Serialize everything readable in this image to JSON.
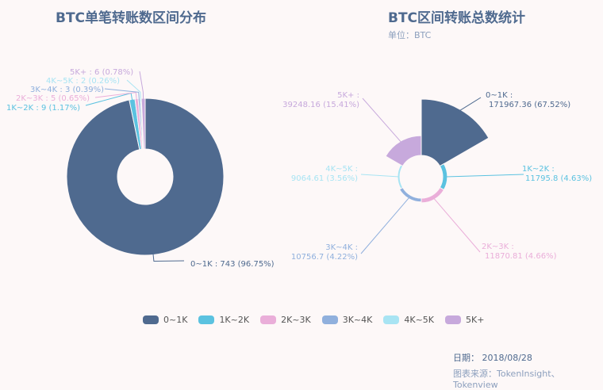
{
  "colors": [
    "#4f6a8f",
    "#5bc2e0",
    "#eaaed9",
    "#90b0dd",
    "#a8e4f3",
    "#c7a9dc"
  ],
  "legend": [
    "0~1K",
    "1K~2K",
    "2K~3K",
    "3K~4K",
    "4K~5K",
    "5K+"
  ],
  "footer": {
    "date": "日期： 2018/08/28",
    "source": "图表来源：TokenInsight、Tokenview"
  },
  "chart_data": [
    {
      "type": "pie",
      "title": "BTC单笔转账数区间分布",
      "categories": [
        "0~1K",
        "1K~2K",
        "2K~3K",
        "3K~4K",
        "4K~5K",
        "5K+"
      ],
      "values": [
        743,
        9,
        5,
        3,
        2,
        6
      ],
      "percent_labels": [
        "96.75%",
        "1.17%",
        "0.65%",
        "0.39%",
        "0.26%",
        "0.78%"
      ],
      "labels": [
        "0~1K : 743 (96.75%)",
        "1K~2K : 9 (1.17%)",
        "2K~3K : 5 (0.65%)",
        "3K~4K : 3 (0.39%)",
        "4K~5K : 2 (0.26%)",
        "5K+ : 6 (0.78%)"
      ]
    },
    {
      "type": "pie",
      "title": "BTC区间转账总数统计",
      "subtitle": "单位：BTC",
      "categories": [
        "0~1K",
        "1K~2K",
        "2K~3K",
        "3K~4K",
        "4K~5K",
        "5K+"
      ],
      "values": [
        171967.36,
        11795.8,
        11870.81,
        10756.7,
        9064.61,
        39248.16
      ],
      "percent_labels": [
        "67.52%",
        "4.63%",
        "4.66%",
        "4.22%",
        "3.56%",
        "15.41%"
      ],
      "labels_line1": [
        "0~1K :",
        "1K~2K :",
        "2K~3K :",
        "3K~4K :",
        "4K~5K :",
        "5K+ :"
      ],
      "labels_line2": [
        "171967.36 (67.52%)",
        "11795.8 (4.63%)",
        "11870.81 (4.66%)",
        "10756.7 (4.22%)",
        "9064.61 (3.56%)",
        "39248.16 (15.41%)"
      ]
    }
  ]
}
